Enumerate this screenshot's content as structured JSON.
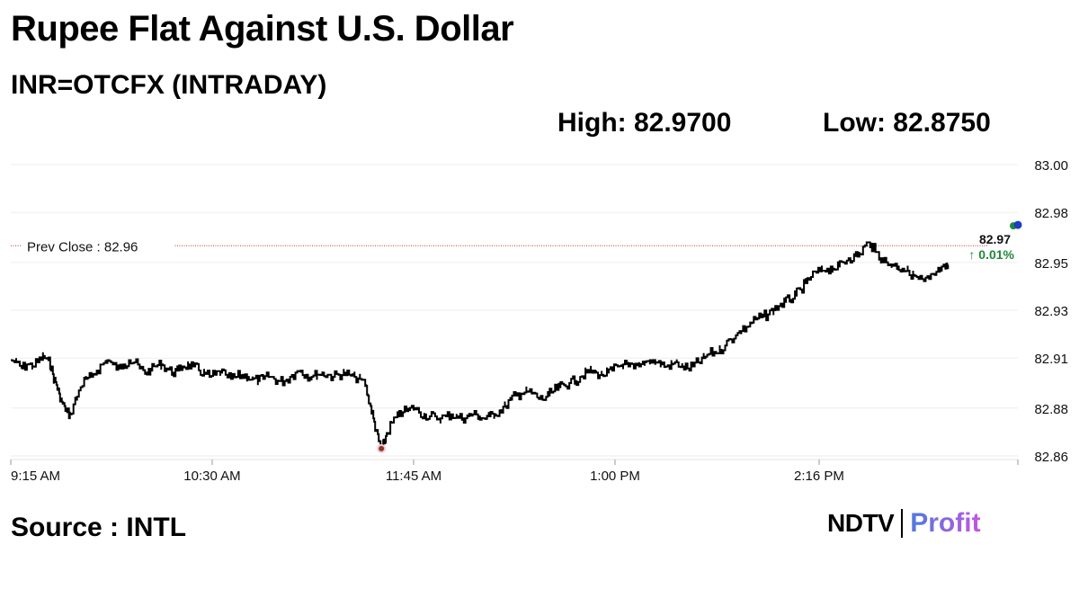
{
  "title": "Rupee Flat Against U.S. Dollar",
  "subtitle": "INR=OTCFX (INTRADAY)",
  "high_label": "High: 82.9700",
  "low_label": "Low: 82.8750",
  "source": "Source : INTL",
  "brand": {
    "ndtv": "NDTV",
    "profit": "Profit"
  },
  "chart_data": {
    "type": "line",
    "title": "",
    "xlabel": "",
    "ylabel": "",
    "ylim": [
      82.86,
      83.0
    ],
    "y_ticks": [
      "83.00",
      "82.98",
      "82.95",
      "82.93",
      "82.91",
      "82.88",
      "82.86"
    ],
    "y_tick_values": [
      83.0,
      82.977,
      82.953,
      82.93,
      82.907,
      82.883,
      82.86
    ],
    "x_ticks": [
      "9:15 AM",
      "10:30 AM",
      "11:45 AM",
      "1:00 PM",
      "2:16 PM"
    ],
    "x_tick_minutes": [
      0,
      75,
      150,
      225,
      301
    ],
    "x_range_minutes": [
      0,
      375
    ],
    "prev_close": {
      "label": "Prev Close : 82.96",
      "value": 82.961
    },
    "last": {
      "value_label": "82.97",
      "change_label": "↑ 0.01%",
      "value": 82.971
    },
    "low_point": {
      "minute": 138,
      "value": 82.8635
    },
    "series": [
      {
        "values": [
          [
            0,
            82.906
          ],
          [
            2,
            82.905
          ],
          [
            4,
            82.902
          ],
          [
            6,
            82.904
          ],
          [
            8,
            82.903
          ],
          [
            10,
            82.905
          ],
          [
            12,
            82.908
          ],
          [
            14,
            82.906
          ],
          [
            15,
            82.903
          ],
          [
            16,
            82.897
          ],
          [
            17,
            82.894
          ],
          [
            18,
            82.89
          ],
          [
            19,
            82.886
          ],
          [
            20,
            82.884
          ],
          [
            21,
            82.881
          ],
          [
            22,
            82.88
          ],
          [
            24,
            82.887
          ],
          [
            26,
            82.893
          ],
          [
            28,
            82.897
          ],
          [
            30,
            82.898
          ],
          [
            32,
            82.901
          ],
          [
            34,
            82.904
          ],
          [
            36,
            82.906
          ],
          [
            38,
            82.904
          ],
          [
            40,
            82.902
          ],
          [
            42,
            82.904
          ],
          [
            44,
            82.906
          ],
          [
            46,
            82.905
          ],
          [
            48,
            82.902
          ],
          [
            50,
            82.9
          ],
          [
            52,
            82.901
          ],
          [
            54,
            82.903
          ],
          [
            56,
            82.904
          ],
          [
            58,
            82.902
          ],
          [
            60,
            82.9
          ],
          [
            62,
            82.901
          ],
          [
            64,
            82.903
          ],
          [
            66,
            82.904
          ],
          [
            68,
            82.903
          ],
          [
            70,
            82.901
          ],
          [
            72,
            82.9
          ],
          [
            74,
            82.898
          ],
          [
            76,
            82.899
          ],
          [
            78,
            82.9
          ],
          [
            80,
            82.899
          ],
          [
            82,
            82.897
          ],
          [
            84,
            82.898
          ],
          [
            86,
            82.899
          ],
          [
            88,
            82.898
          ],
          [
            90,
            82.897
          ],
          [
            92,
            82.896
          ],
          [
            94,
            82.897
          ],
          [
            96,
            82.898
          ],
          [
            98,
            82.897
          ],
          [
            100,
            82.896
          ],
          [
            102,
            82.896
          ],
          [
            104,
            82.898
          ],
          [
            106,
            82.9
          ],
          [
            108,
            82.901
          ],
          [
            110,
            82.899
          ],
          [
            112,
            82.898
          ],
          [
            114,
            82.899
          ],
          [
            116,
            82.9
          ],
          [
            118,
            82.899
          ],
          [
            120,
            82.898
          ],
          [
            122,
            82.899
          ],
          [
            124,
            82.9
          ],
          [
            126,
            82.899
          ],
          [
            128,
            82.898
          ],
          [
            130,
            82.897
          ],
          [
            132,
            82.894
          ],
          [
            133,
            82.889
          ],
          [
            134,
            82.884
          ],
          [
            135,
            82.878
          ],
          [
            136,
            82.872
          ],
          [
            137,
            82.867
          ],
          [
            138,
            82.8635
          ],
          [
            139,
            82.866
          ],
          [
            140,
            82.871
          ],
          [
            142,
            82.876
          ],
          [
            144,
            82.879
          ],
          [
            146,
            82.881
          ],
          [
            148,
            82.882
          ],
          [
            150,
            82.883
          ],
          [
            152,
            82.881
          ],
          [
            154,
            82.88
          ],
          [
            156,
            82.879
          ],
          [
            158,
            82.879
          ],
          [
            160,
            82.878
          ],
          [
            162,
            82.879
          ],
          [
            164,
            82.88
          ],
          [
            166,
            82.879
          ],
          [
            168,
            82.878
          ],
          [
            170,
            82.879
          ],
          [
            172,
            82.88
          ],
          [
            174,
            82.879
          ],
          [
            176,
            82.878
          ],
          [
            178,
            82.879
          ],
          [
            180,
            82.88
          ],
          [
            182,
            82.882
          ],
          [
            184,
            82.884
          ],
          [
            186,
            82.887
          ],
          [
            188,
            82.889
          ],
          [
            190,
            82.89
          ],
          [
            192,
            82.891
          ],
          [
            194,
            82.89
          ],
          [
            196,
            82.888
          ],
          [
            198,
            82.887
          ],
          [
            200,
            82.889
          ],
          [
            202,
            82.891
          ],
          [
            204,
            82.893
          ],
          [
            206,
            82.894
          ],
          [
            208,
            82.895
          ],
          [
            210,
            82.896
          ],
          [
            212,
            82.898
          ],
          [
            214,
            82.9
          ],
          [
            216,
            82.901
          ],
          [
            218,
            82.9
          ],
          [
            220,
            82.899
          ],
          [
            222,
            82.9
          ],
          [
            224,
            82.901
          ],
          [
            226,
            82.903
          ],
          [
            228,
            82.904
          ],
          [
            230,
            82.903
          ],
          [
            232,
            82.902
          ],
          [
            234,
            82.903
          ],
          [
            236,
            82.905
          ],
          [
            238,
            82.906
          ],
          [
            240,
            82.905
          ],
          [
            242,
            82.904
          ],
          [
            244,
            82.903
          ],
          [
            246,
            82.904
          ],
          [
            248,
            82.905
          ],
          [
            250,
            82.903
          ],
          [
            252,
            82.902
          ],
          [
            254,
            82.903
          ],
          [
            256,
            82.905
          ],
          [
            258,
            82.907
          ],
          [
            260,
            82.909
          ],
          [
            262,
            82.91
          ],
          [
            264,
            82.911
          ],
          [
            266,
            82.913
          ],
          [
            268,
            82.916
          ],
          [
            270,
            82.918
          ],
          [
            272,
            82.92
          ],
          [
            274,
            82.922
          ],
          [
            276,
            82.924
          ],
          [
            278,
            82.926
          ],
          [
            280,
            82.927
          ],
          [
            282,
            82.928
          ],
          [
            284,
            82.93
          ],
          [
            286,
            82.932
          ],
          [
            288,
            82.934
          ],
          [
            290,
            82.935
          ],
          [
            292,
            82.937
          ],
          [
            294,
            82.94
          ],
          [
            296,
            82.943
          ],
          [
            298,
            82.946
          ],
          [
            300,
            82.948
          ],
          [
            302,
            82.949
          ],
          [
            304,
            82.95
          ],
          [
            306,
            82.95
          ],
          [
            308,
            82.951
          ],
          [
            310,
            82.953
          ],
          [
            312,
            82.955
          ],
          [
            314,
            82.956
          ],
          [
            316,
            82.957
          ],
          [
            318,
            82.961
          ],
          [
            320,
            82.962
          ],
          [
            322,
            82.958
          ],
          [
            324,
            82.955
          ],
          [
            326,
            82.953
          ],
          [
            328,
            82.952
          ],
          [
            330,
            82.951
          ],
          [
            332,
            82.95
          ],
          [
            334,
            82.949
          ],
          [
            336,
            82.947
          ],
          [
            338,
            82.945
          ],
          [
            340,
            82.944
          ],
          [
            342,
            82.945
          ],
          [
            344,
            82.947
          ],
          [
            346,
            82.949
          ],
          [
            348,
            82.95
          ],
          [
            349,
            82.951
          ]
        ]
      }
    ]
  }
}
